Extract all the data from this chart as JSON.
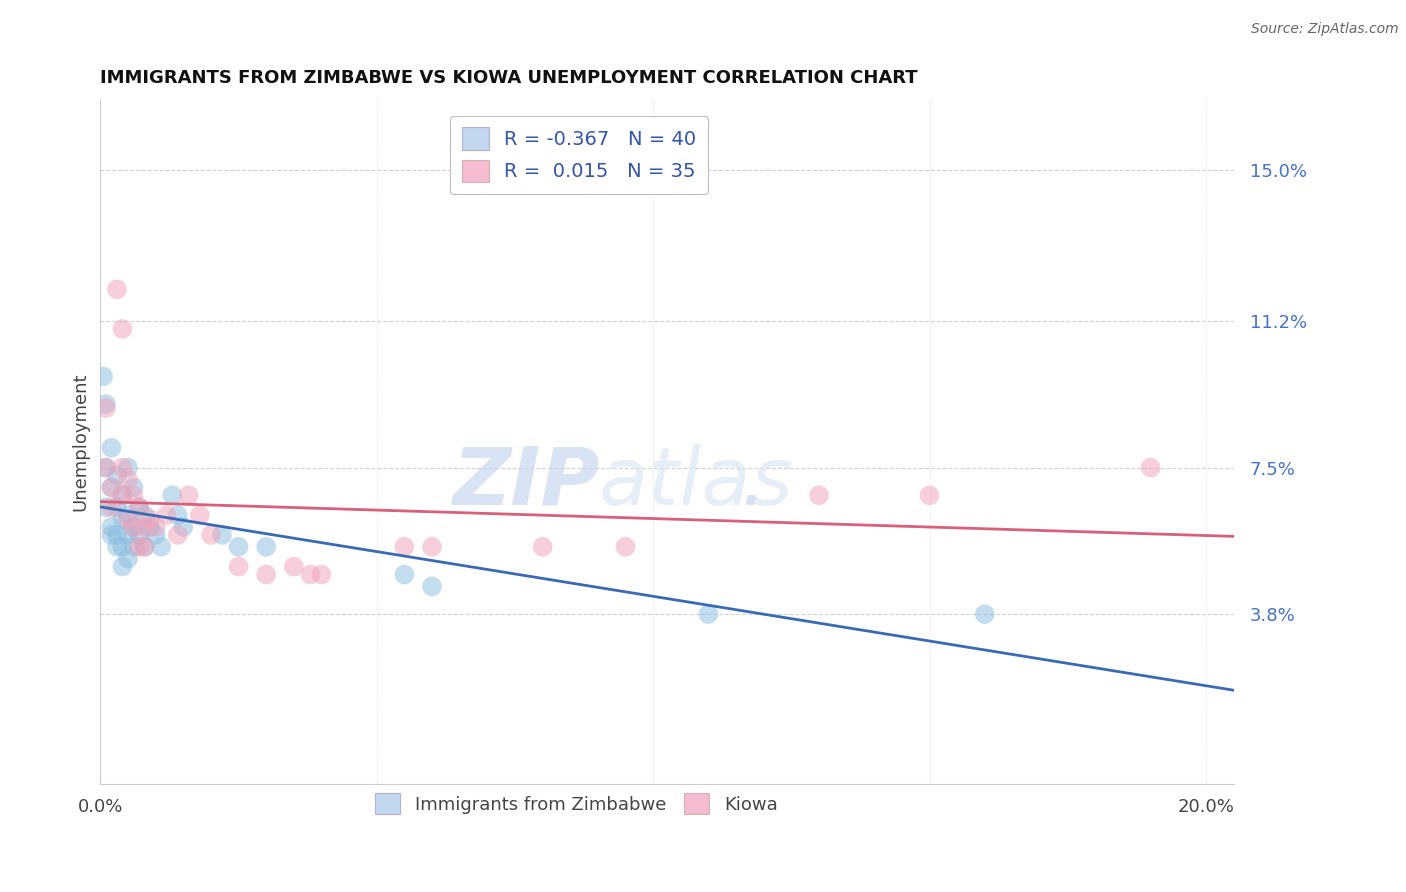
{
  "title": "IMMIGRANTS FROM ZIMBABWE VS KIOWA UNEMPLOYMENT CORRELATION CHART",
  "source": "Source: ZipAtlas.com",
  "ylabel": "Unemployment",
  "xlim": [
    0.0,
    0.205
  ],
  "ylim": [
    -0.005,
    0.168
  ],
  "yticks": [
    0.038,
    0.075,
    0.112,
    0.15
  ],
  "ytick_labels": [
    "3.8%",
    "7.5%",
    "11.2%",
    "15.0%"
  ],
  "xticks": [
    0.0,
    0.05,
    0.1,
    0.15,
    0.2
  ],
  "xtick_labels": [
    "0.0%",
    "",
    "",
    "",
    "20.0%"
  ],
  "blue_scatter": [
    [
      0.0005,
      0.098
    ],
    [
      0.001,
      0.091
    ],
    [
      0.001,
      0.075
    ],
    [
      0.001,
      0.065
    ],
    [
      0.002,
      0.08
    ],
    [
      0.002,
      0.07
    ],
    [
      0.002,
      0.06
    ],
    [
      0.002,
      0.058
    ],
    [
      0.003,
      0.073
    ],
    [
      0.003,
      0.065
    ],
    [
      0.003,
      0.058
    ],
    [
      0.003,
      0.055
    ],
    [
      0.004,
      0.068
    ],
    [
      0.004,
      0.062
    ],
    [
      0.004,
      0.055
    ],
    [
      0.004,
      0.05
    ],
    [
      0.005,
      0.075
    ],
    [
      0.005,
      0.063
    ],
    [
      0.005,
      0.058
    ],
    [
      0.005,
      0.052
    ],
    [
      0.006,
      0.07
    ],
    [
      0.006,
      0.06
    ],
    [
      0.006,
      0.055
    ],
    [
      0.007,
      0.065
    ],
    [
      0.007,
      0.058
    ],
    [
      0.008,
      0.063
    ],
    [
      0.008,
      0.055
    ],
    [
      0.009,
      0.06
    ],
    [
      0.01,
      0.058
    ],
    [
      0.011,
      0.055
    ],
    [
      0.013,
      0.068
    ],
    [
      0.014,
      0.063
    ],
    [
      0.015,
      0.06
    ],
    [
      0.022,
      0.058
    ],
    [
      0.025,
      0.055
    ],
    [
      0.03,
      0.055
    ],
    [
      0.055,
      0.048
    ],
    [
      0.06,
      0.045
    ],
    [
      0.11,
      0.038
    ],
    [
      0.16,
      0.038
    ]
  ],
  "pink_scatter": [
    [
      0.001,
      0.09
    ],
    [
      0.001,
      0.075
    ],
    [
      0.002,
      0.07
    ],
    [
      0.002,
      0.065
    ],
    [
      0.003,
      0.12
    ],
    [
      0.004,
      0.11
    ],
    [
      0.004,
      0.075
    ],
    [
      0.004,
      0.068
    ],
    [
      0.005,
      0.072
    ],
    [
      0.005,
      0.062
    ],
    [
      0.006,
      0.068
    ],
    [
      0.006,
      0.06
    ],
    [
      0.007,
      0.065
    ],
    [
      0.007,
      0.055
    ],
    [
      0.008,
      0.06
    ],
    [
      0.008,
      0.055
    ],
    [
      0.009,
      0.062
    ],
    [
      0.01,
      0.06
    ],
    [
      0.012,
      0.063
    ],
    [
      0.014,
      0.058
    ],
    [
      0.016,
      0.068
    ],
    [
      0.018,
      0.063
    ],
    [
      0.02,
      0.058
    ],
    [
      0.025,
      0.05
    ],
    [
      0.03,
      0.048
    ],
    [
      0.035,
      0.05
    ],
    [
      0.038,
      0.048
    ],
    [
      0.04,
      0.048
    ],
    [
      0.055,
      0.055
    ],
    [
      0.06,
      0.055
    ],
    [
      0.08,
      0.055
    ],
    [
      0.095,
      0.055
    ],
    [
      0.13,
      0.068
    ],
    [
      0.15,
      0.068
    ],
    [
      0.19,
      0.075
    ]
  ],
  "watermark_zip": "ZIP",
  "watermark_atlas": "atlas",
  "watermark_dot": ".",
  "scatter_size": 200,
  "blue_color": "#89bde0",
  "pink_color": "#f0a0b8",
  "blue_line_color": "#3a6ab5",
  "pink_line_color": "#d95f7a",
  "background_color": "#ffffff",
  "grid_color": "#cccccc",
  "legend1_blue_label_R": "R = ",
  "legend1_blue_val": "-0.367",
  "legend1_blue_N": "N = 40",
  "legend1_pink_label_R": "R =  ",
  "legend1_pink_val": "0.015",
  "legend1_pink_N": "N = 35"
}
